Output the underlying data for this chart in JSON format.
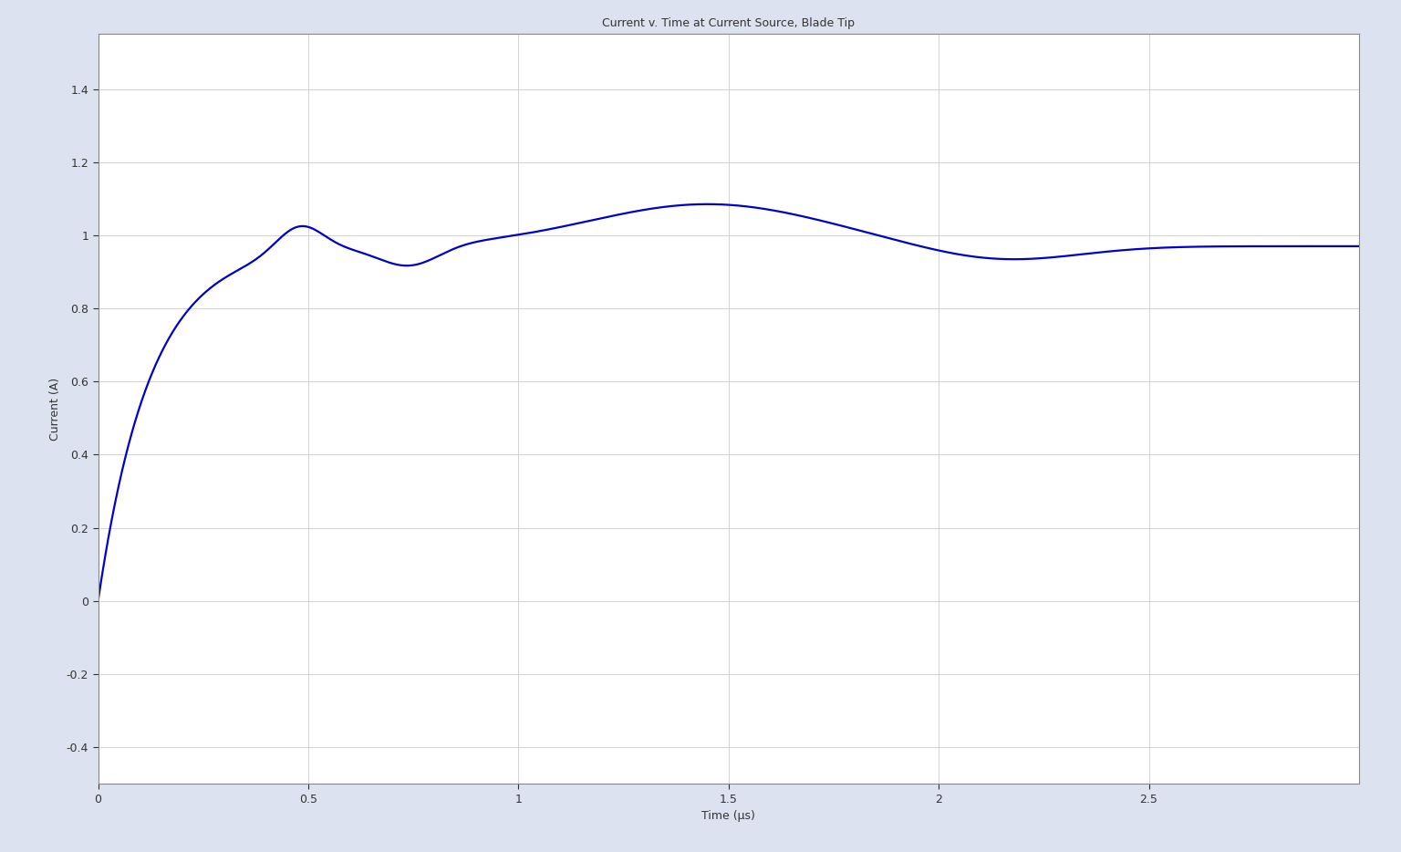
{
  "title": "Current v. Time at Current Source, Blade Tip",
  "xlabel": "Time (μs)",
  "ylabel": "Current (A)",
  "xlim": [
    0,
    3.0
  ],
  "ylim": [
    -0.5,
    1.55
  ],
  "xticks": [
    0,
    0.5,
    1,
    1.5,
    2,
    2.5
  ],
  "yticks": [
    -0.4,
    -0.2,
    0,
    0.2,
    0.4,
    0.6,
    0.8,
    1,
    1.2,
    1.4
  ],
  "line_color": "#0000cc",
  "line_width": 1.6,
  "fig_background_color": "#dde2f0",
  "plot_background_color": "#ffffff",
  "grid_color": "#cccccc",
  "grid_linewidth": 0.6,
  "title_fontsize": 9,
  "label_fontsize": 9,
  "tick_fontsize": 9,
  "spine_color": "#888888"
}
